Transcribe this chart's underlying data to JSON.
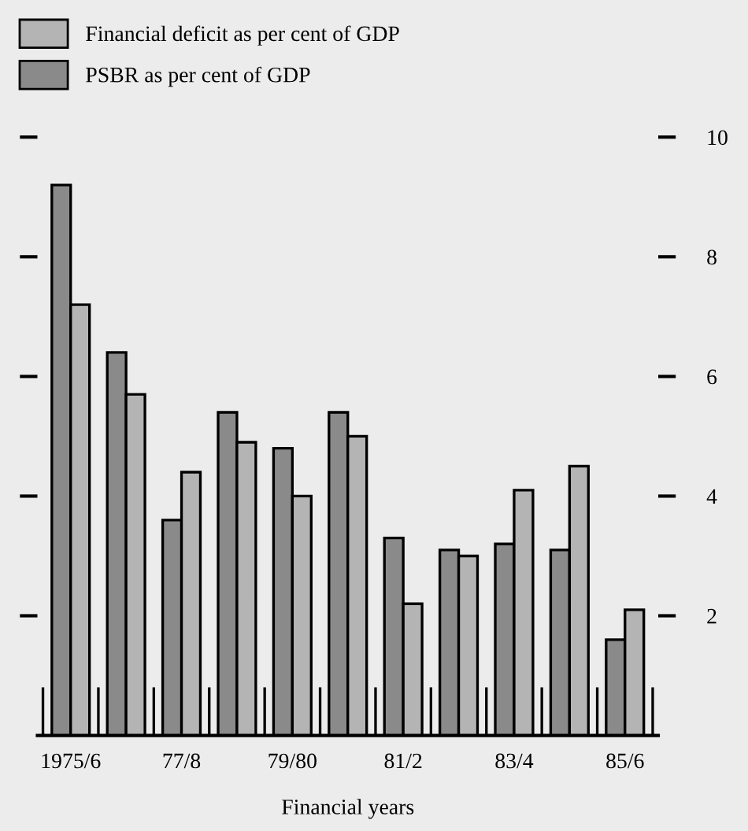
{
  "chart_data": {
    "type": "bar",
    "xlabel": "Financial years",
    "categories": [
      "1975/6",
      null,
      "77/8",
      null,
      "79/80",
      null,
      "81/2",
      null,
      "83/4",
      null,
      "85/6"
    ],
    "series": [
      {
        "name": "PSBR as per cent of GDP",
        "color": "#8a8a8a",
        "values": [
          9.2,
          6.4,
          3.6,
          5.4,
          4.8,
          5.4,
          3.3,
          3.1,
          3.2,
          3.1,
          1.6
        ]
      },
      {
        "name": "Financial deficit as per cent of GDP",
        "color": "#b4b4b4",
        "values": [
          7.2,
          5.7,
          4.4,
          4.9,
          4.0,
          5.0,
          2.2,
          3.0,
          4.1,
          4.5,
          2.1
        ]
      }
    ],
    "ylim": [
      0,
      10
    ],
    "yticks": [
      2,
      4,
      6,
      8,
      10
    ],
    "grid": false,
    "legend": "top left"
  }
}
